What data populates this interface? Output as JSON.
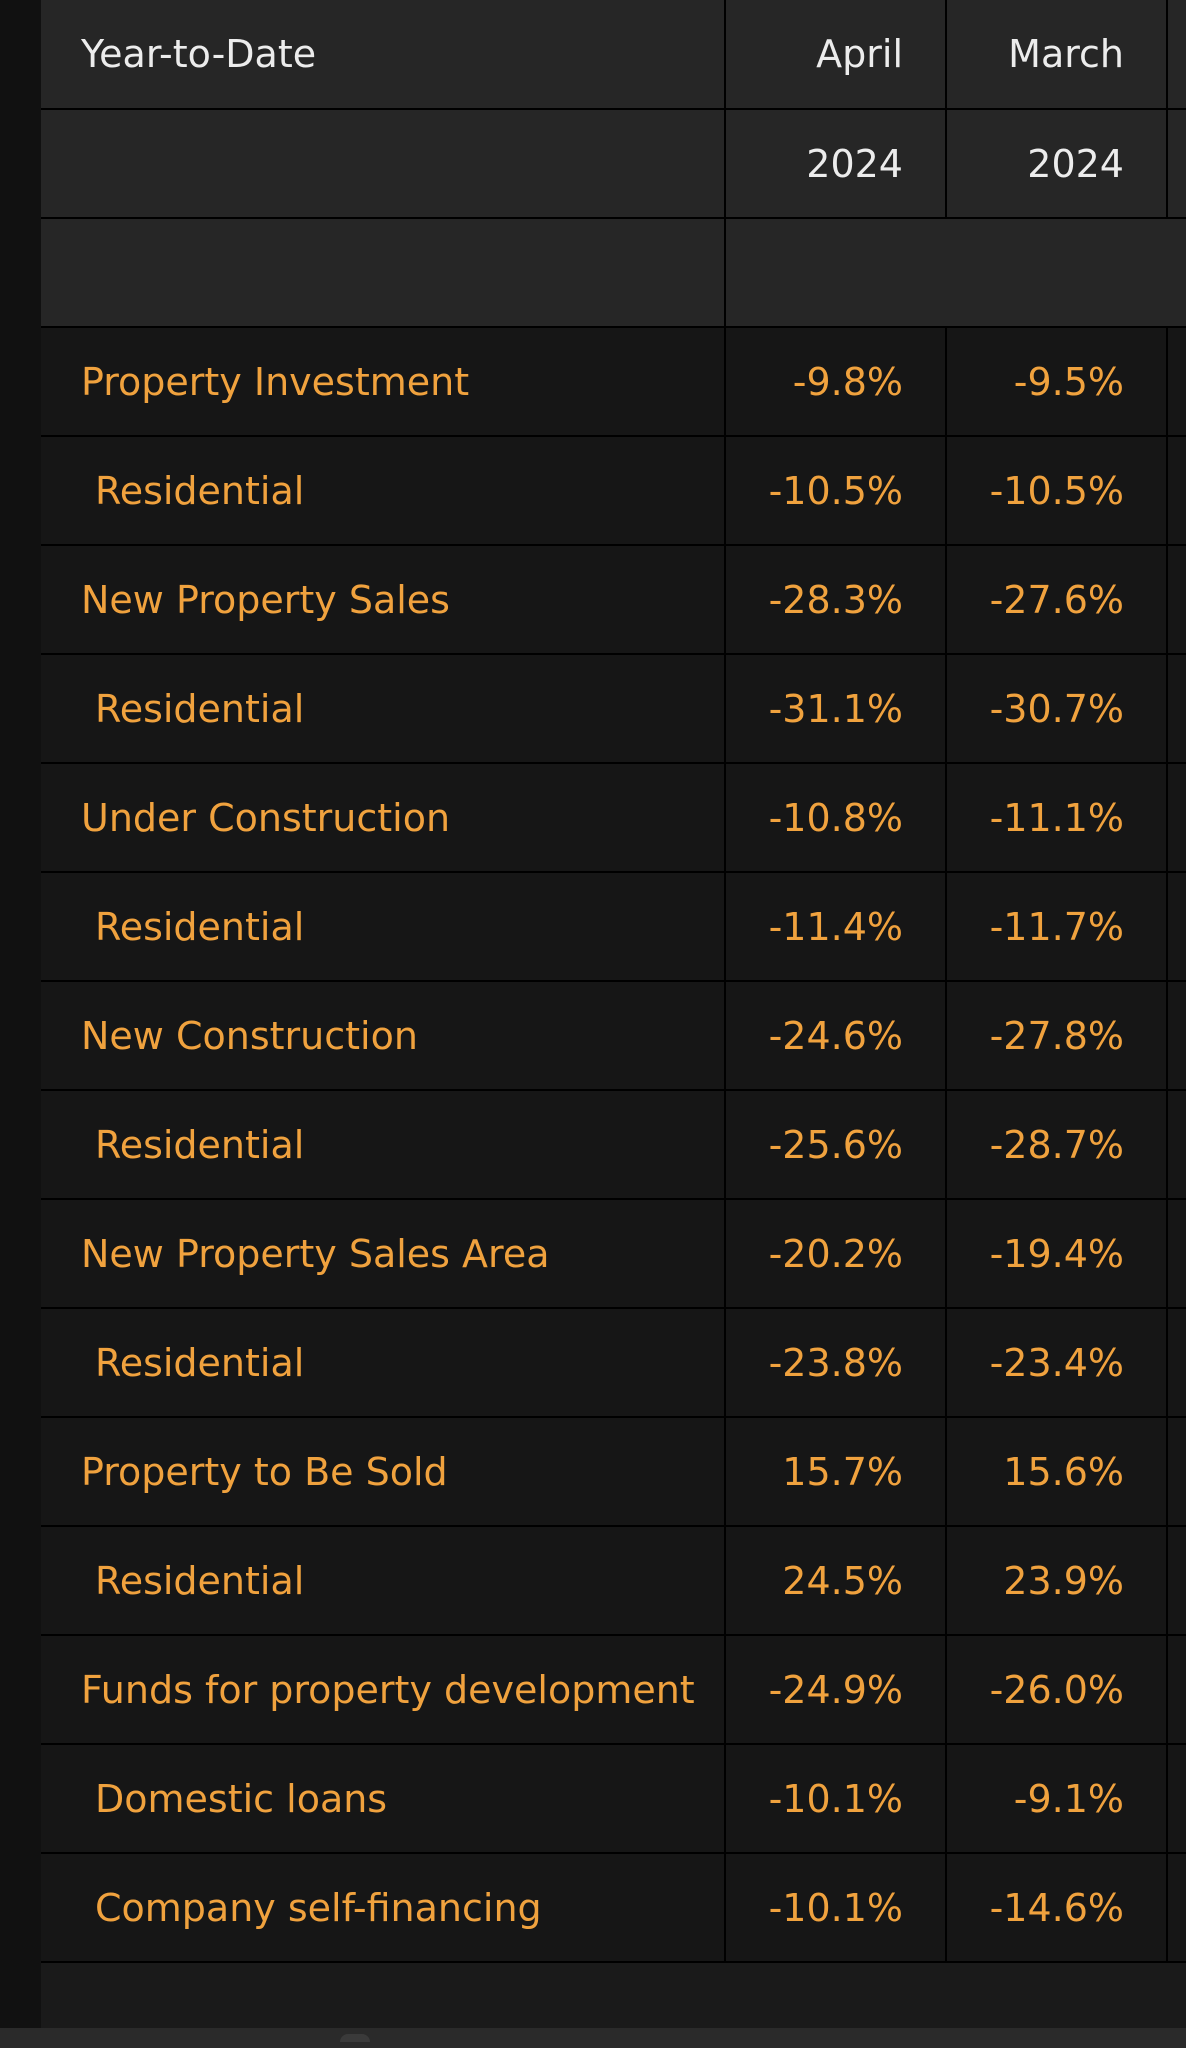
{
  "table": {
    "header": {
      "label": "Year-to-Date",
      "col_apr": "April",
      "col_mar": "March"
    },
    "year_row": {
      "col_apr": "2024",
      "col_mar": "2024"
    },
    "rows": [
      {
        "label": "Property Investment",
        "apr": "-9.8%",
        "mar": "-9.5%"
      },
      {
        "label": "Residential",
        "apr": "-10.5%",
        "mar": "-10.5%"
      },
      {
        "label": "New Property Sales",
        "apr": "-28.3%",
        "mar": "-27.6%"
      },
      {
        "label": "Residential",
        "apr": "-31.1%",
        "mar": "-30.7%"
      },
      {
        "label": "Under Construction",
        "apr": "-10.8%",
        "mar": "-11.1%"
      },
      {
        "label": "Residential",
        "apr": "-11.4%",
        "mar": "-11.7%"
      },
      {
        "label": "New Construction",
        "apr": "-24.6%",
        "mar": "-27.8%"
      },
      {
        "label": "Residential",
        "apr": "-25.6%",
        "mar": "-28.7%"
      },
      {
        "label": "New Property Sales Area",
        "apr": "-20.2%",
        "mar": "-19.4%"
      },
      {
        "label": "Residential",
        "apr": "-23.8%",
        "mar": "-23.4%"
      },
      {
        "label": "Property to Be Sold",
        "apr": "15.7%",
        "mar": "15.6%"
      },
      {
        "label": "Residential",
        "apr": "24.5%",
        "mar": "23.9%"
      },
      {
        "label": "Funds for property development",
        "apr": "-24.9%",
        "mar": "-26.0%"
      },
      {
        "label": "Domestic loans",
        "apr": "-10.1%",
        "mar": "-9.1%"
      },
      {
        "label": "Company self-financing",
        "apr": "-10.1%",
        "mar": "-14.6%"
      }
    ]
  },
  "colors": {
    "header_text": "#ececec",
    "value_text": "#f0a23e",
    "header_bg": "#262626",
    "row_bg": "#161616"
  }
}
